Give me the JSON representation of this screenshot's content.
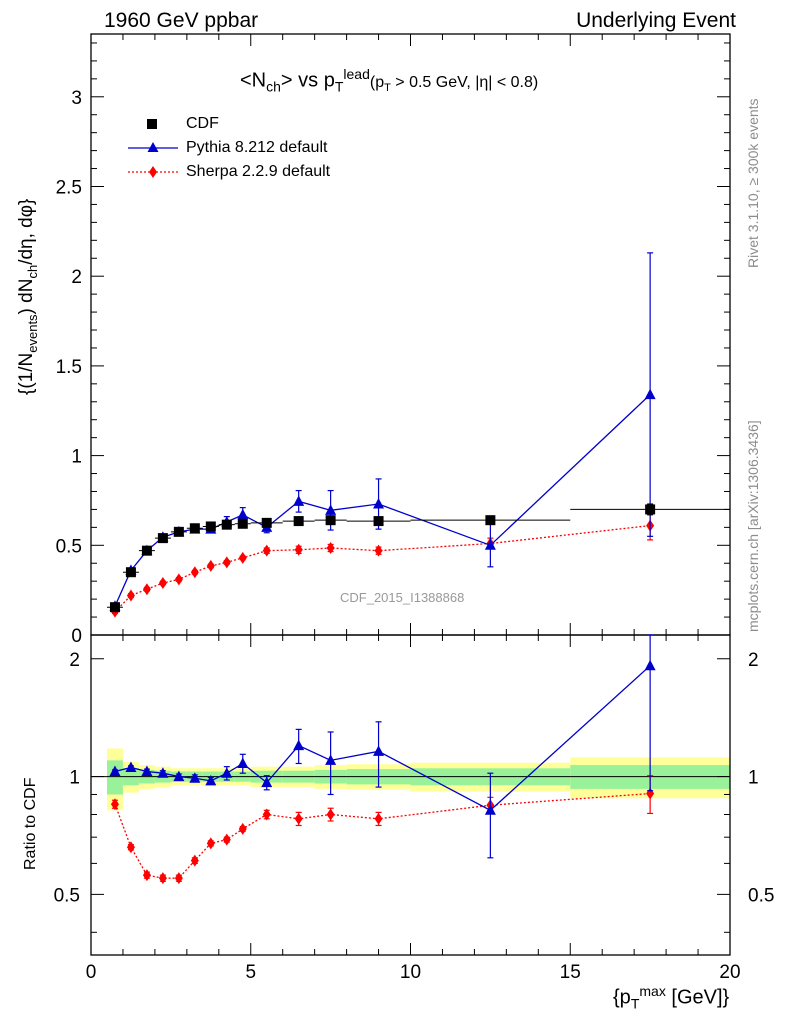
{
  "header": {
    "left": "1960 GeV ppbar",
    "right": "Underlying Event"
  },
  "title": {
    "pre": "<N",
    "pre_sub": "ch",
    "mid": "> vs p",
    "mid_sub": "T",
    "mid_sup": "lead",
    "cuts_a": "(p",
    "cuts_a_sub": "T",
    "cuts_b": " > 0.5 GeV, |η| < 0.8)"
  },
  "side_labels": {
    "rivet": "Rivet 3.1.10, ≥ 300k events",
    "mcplots": "mcplots.cern.ch [arXiv:1306.3436]"
  },
  "analysis_id": "CDF_2015_I1388868",
  "colors": {
    "cdf": "#000000",
    "pythia": "#0000cc",
    "sherpa": "#ff0000",
    "band_inner": "#99f299",
    "band_outer": "#ffff99"
  },
  "chart_data": [
    {
      "type": "scatter",
      "panel": "main",
      "ylabel_parts": [
        "{(1/N",
        "events",
        ") dN",
        "ch",
        "/dη, dφ}"
      ],
      "xlim": [
        0,
        20
      ],
      "ylim": [
        0,
        3.35
      ],
      "ytick_labels": [
        "0",
        "0.5",
        "1",
        "1.5",
        "2",
        "2.5",
        "3"
      ],
      "legend": {
        "placement": "top-left"
      },
      "x": [
        0.75,
        1.25,
        1.75,
        2.25,
        2.75,
        3.25,
        3.75,
        4.25,
        4.75,
        5.5,
        6.5,
        7.5,
        9.0,
        12.5,
        17.5
      ],
      "x_err": [
        0.25,
        0.25,
        0.25,
        0.25,
        0.25,
        0.25,
        0.25,
        0.25,
        0.25,
        0.5,
        0.5,
        0.5,
        1.0,
        2.5,
        2.5
      ],
      "series": [
        {
          "name": "CDF",
          "marker": "square",
          "values": [
            0.155,
            0.35,
            0.47,
            0.54,
            0.575,
            0.595,
            0.605,
            0.615,
            0.62,
            0.625,
            0.635,
            0.64,
            0.635,
            0.64,
            0.7
          ],
          "errors": [
            0.01,
            0.01,
            0.01,
            0.01,
            0.01,
            0.01,
            0.01,
            0.01,
            0.01,
            0.01,
            0.015,
            0.015,
            0.015,
            0.02,
            0.03
          ]
        },
        {
          "name": "Pythia 8.212 default",
          "marker": "triangle",
          "values": [
            0.16,
            0.36,
            0.47,
            0.545,
            0.575,
            0.59,
            0.59,
            0.63,
            0.67,
            0.6,
            0.745,
            0.695,
            0.73,
            0.5,
            1.34
          ],
          "errors": [
            0.01,
            0.01,
            0.015,
            0.015,
            0.015,
            0.02,
            0.02,
            0.03,
            0.04,
            0.03,
            0.06,
            0.11,
            0.14,
            0.12,
            0.79
          ]
        },
        {
          "name": "Sherpa 2.2.9 default",
          "marker": "diamond",
          "values": [
            0.13,
            0.22,
            0.255,
            0.29,
            0.31,
            0.35,
            0.385,
            0.405,
            0.43,
            0.47,
            0.475,
            0.485,
            0.47,
            0.51,
            0.61
          ],
          "errors": [
            0.01,
            0.01,
            0.01,
            0.01,
            0.01,
            0.01,
            0.01,
            0.01,
            0.01,
            0.015,
            0.02,
            0.02,
            0.02,
            0.03,
            0.08
          ]
        }
      ]
    },
    {
      "type": "scatter",
      "panel": "ratio",
      "ylabel": "Ratio to CDF",
      "xlabel_parts": [
        "{p",
        "T",
        "max",
        " [GeV]}"
      ],
      "xlim": [
        0,
        20
      ],
      "ylim": [
        0.35,
        2.3
      ],
      "xtick_labels": [
        "0",
        "5",
        "10",
        "15",
        "20"
      ],
      "ytick_labels": [
        "0.5",
        "1",
        "2"
      ],
      "bands": {
        "x_edges": [
          0.5,
          1.0,
          1.5,
          2.0,
          2.5,
          3.0,
          3.5,
          4.0,
          4.5,
          5.0,
          6.0,
          7.0,
          8.0,
          10.0,
          15.0,
          20.0
        ],
        "inner": [
          0.1,
          0.05,
          0.04,
          0.035,
          0.03,
          0.03,
          0.03,
          0.03,
          0.03,
          0.035,
          0.035,
          0.04,
          0.045,
          0.05,
          0.07
        ],
        "outer": [
          0.18,
          0.09,
          0.07,
          0.06,
          0.05,
          0.05,
          0.05,
          0.05,
          0.05,
          0.06,
          0.06,
          0.07,
          0.075,
          0.085,
          0.12
        ]
      },
      "series": [
        {
          "name": "Pythia 8.212 default",
          "values": [
            1.03,
            1.055,
            1.03,
            1.02,
            1.0,
            0.99,
            0.975,
            1.02,
            1.08,
            0.965,
            1.2,
            1.1,
            1.16,
            0.82,
            1.92
          ],
          "errors": [
            0.01,
            0.01,
            0.015,
            0.015,
            0.015,
            0.02,
            0.02,
            0.04,
            0.06,
            0.04,
            0.12,
            0.2,
            0.22,
            0.2,
            1.0
          ]
        },
        {
          "name": "Sherpa 2.2.9 default",
          "values": [
            0.85,
            0.66,
            0.56,
            0.55,
            0.55,
            0.61,
            0.675,
            0.69,
            0.735,
            0.8,
            0.78,
            0.8,
            0.78,
            0.845,
            0.905
          ],
          "errors": [
            0.02,
            0.01,
            0.01,
            0.01,
            0.01,
            0.01,
            0.01,
            0.01,
            0.01,
            0.02,
            0.03,
            0.03,
            0.03,
            0.04,
            0.1
          ]
        }
      ]
    }
  ]
}
